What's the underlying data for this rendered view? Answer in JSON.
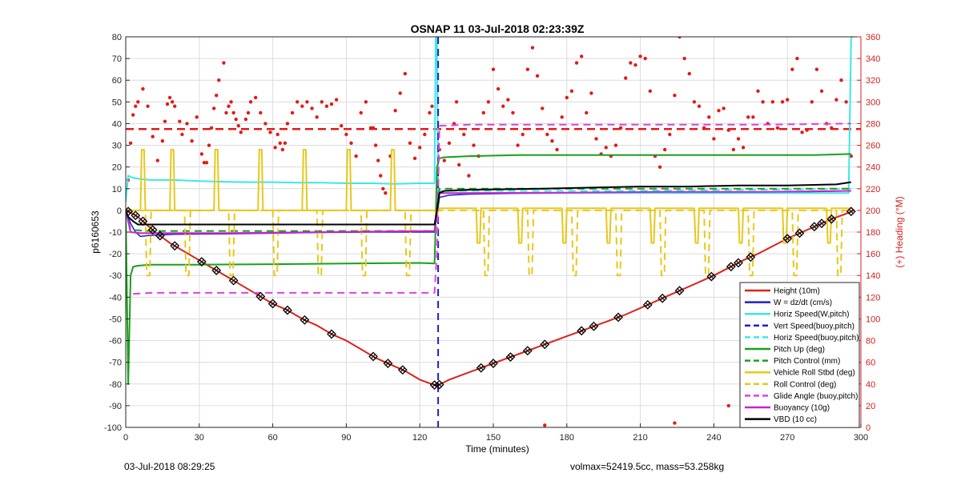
{
  "footer": {
    "left": "03-Jul-2018 08:29:25",
    "right": "volmax=52419.5cc, mass=53.258kg"
  },
  "chart_data": {
    "type": "line",
    "title": "OSNAP 11 03-Jul-2018 02:23:39Z",
    "xlabel": "Time (minutes)",
    "ylabel": "p6160653",
    "y2label": "(+) Heading (°M)",
    "xlim": [
      0,
      300
    ],
    "ylim": [
      -100,
      80
    ],
    "y2lim": [
      0,
      360
    ],
    "xticks": [
      0,
      30,
      60,
      90,
      120,
      150,
      180,
      210,
      240,
      270,
      300
    ],
    "yticks": [
      -100,
      -90,
      -80,
      -70,
      -60,
      -50,
      -40,
      -30,
      -20,
      -10,
      0,
      10,
      20,
      30,
      40,
      50,
      60,
      70,
      80
    ],
    "y2ticks": [
      0,
      20,
      40,
      60,
      80,
      100,
      120,
      140,
      160,
      180,
      200,
      220,
      240,
      260,
      280,
      300,
      320,
      340,
      360
    ],
    "grid": true,
    "legend_position": "bottom-right",
    "colors": {
      "height": "#d9231c",
      "w": "#1f1fc8",
      "horiz": "#3ee6e6",
      "pitch": "#1aa01a",
      "roll": "#e6c81e",
      "glide": "#e040e0",
      "buoyancy": "#cc22cc",
      "vbd": "#000000",
      "heading": "#e01b1b"
    },
    "series": [
      {
        "name": "Height (10m)",
        "color": "#d9231c",
        "style": "solid",
        "width": 2,
        "axis": "left",
        "x": [
          0,
          2,
          5,
          8,
          12,
          18,
          24,
          30,
          36,
          42,
          48,
          54,
          60,
          66,
          72,
          78,
          84,
          90,
          96,
          102,
          108,
          114,
          120,
          126,
          127,
          128,
          132,
          138,
          144,
          150,
          156,
          162,
          168,
          174,
          180,
          186,
          192,
          198,
          204,
          210,
          216,
          222,
          228,
          234,
          240,
          246,
          252,
          258,
          264,
          270,
          276,
          282,
          288,
          294,
          297
        ],
        "y": [
          0,
          -1,
          -3,
          -6,
          -10,
          -15,
          -19,
          -23,
          -27,
          -31,
          -35,
          -39,
          -43,
          -46,
          -50,
          -53,
          -57,
          -60,
          -64,
          -68,
          -71,
          -74,
          -78,
          -80.5,
          -80.5,
          -80.3,
          -78,
          -75.5,
          -73,
          -70.5,
          -68,
          -65.5,
          -63,
          -60.5,
          -58,
          -55.5,
          -53,
          -50.5,
          -48,
          -45,
          -42,
          -39,
          -36,
          -33,
          -30,
          -26.5,
          -23,
          -20,
          -16.5,
          -13,
          -10,
          -7,
          -4,
          -1.5,
          0
        ]
      },
      {
        "name": "W = dz/dt (cm/s)",
        "color": "#1f1fc8",
        "style": "solid",
        "width": 1.5,
        "axis": "left",
        "x": [
          0,
          2,
          4,
          6,
          10,
          20,
          40,
          60,
          80,
          100,
          126,
          127,
          128,
          132,
          140,
          160,
          180,
          200,
          220,
          240,
          260,
          280,
          296
        ],
        "y": [
          0,
          -6,
          -10,
          -12,
          -11.5,
          -11,
          -10.8,
          -10.5,
          -10.2,
          -10,
          -10,
          -3,
          6,
          7,
          7.5,
          7.8,
          8,
          8.2,
          8.3,
          8.5,
          8.5,
          8.6,
          9
        ]
      },
      {
        "name": "Horiz Speed(W,pitch)",
        "color": "#3ee6e6",
        "style": "solid",
        "width": 2,
        "axis": "left",
        "x": [
          0,
          1,
          3,
          6,
          10,
          20,
          30,
          40,
          50,
          60,
          70,
          80,
          90,
          100,
          110,
          120,
          126,
          126.5,
          127,
          127.5,
          128,
          130,
          140,
          160,
          180,
          200,
          220,
          240,
          260,
          280,
          295,
          296,
          297
        ],
        "y": [
          4,
          16,
          15,
          14.5,
          14,
          14,
          13.5,
          13.2,
          13,
          13,
          12.8,
          12.8,
          12.5,
          12.5,
          12.2,
          12.5,
          12.5,
          80,
          80,
          10,
          8,
          8,
          8,
          8,
          8,
          8,
          8,
          8,
          8,
          8,
          8,
          80,
          80
        ]
      },
      {
        "name": "Vert Speed(buoy,pitch)",
        "color": "#1f1fc8",
        "style": "dashed",
        "width": 2,
        "axis": "left",
        "x": [
          127.5,
          127.5
        ],
        "y": [
          80,
          -100
        ]
      },
      {
        "name": "Horiz Speed(buoy,pitch)",
        "color": "#3ee6e6",
        "style": "dashed",
        "width": 2,
        "axis": "left",
        "x": [
          127,
          128,
          140,
          200,
          260,
          296
        ],
        "y": [
          10,
          9,
          9,
          9,
          9.5,
          10
        ]
      },
      {
        "name": "Pitch Up (deg)",
        "color": "#1aa01a",
        "style": "solid",
        "width": 2,
        "axis": "left",
        "x": [
          0,
          1,
          2,
          3,
          5,
          10,
          30,
          60,
          90,
          120,
          126,
          126.5,
          127,
          128,
          130,
          140,
          160,
          180,
          200,
          220,
          240,
          260,
          280,
          296
        ],
        "y": [
          0,
          -80,
          -30,
          -26,
          -25.5,
          -25,
          -25,
          -24.8,
          -24.5,
          -24.2,
          -24.5,
          -5,
          20,
          24,
          24.5,
          25,
          25.5,
          25.5,
          25.5,
          25.5,
          25.5,
          25.5,
          25.5,
          26
        ]
      },
      {
        "name": "Pitch Control (mm)",
        "color": "#1aa01a",
        "style": "dashed",
        "width": 2,
        "axis": "left",
        "x": [
          0,
          2,
          10,
          60,
          126,
          127,
          128,
          200,
          296
        ],
        "y": [
          0,
          -9,
          -9.5,
          -9.5,
          -9.5,
          0,
          10,
          10,
          10
        ]
      },
      {
        "name": "Vehicle Roll Stbd (deg)",
        "color": "#e6c81e",
        "style": "solid",
        "width": 2,
        "axis": "left",
        "x": [
          0,
          6,
          6.5,
          7.5,
          8,
          18,
          18.5,
          19.5,
          20,
          36,
          36.5,
          37.5,
          38,
          54,
          54.5,
          55.5,
          56,
          72,
          72.5,
          73.5,
          74,
          90,
          90.5,
          91.5,
          92,
          108,
          108.5,
          109.5,
          110,
          126,
          127,
          128,
          132,
          143,
          143.5,
          144.5,
          145,
          160,
          160.5,
          161.5,
          162,
          178,
          178.5,
          179.5,
          180,
          196,
          196.5,
          197.5,
          198,
          214,
          214.5,
          215.5,
          216,
          232,
          232.5,
          233.5,
          234,
          250,
          250.5,
          251.5,
          252,
          268,
          268.5,
          269.5,
          270,
          286,
          286.5,
          287.5,
          288,
          296
        ],
        "y": [
          0,
          0,
          28,
          28,
          0,
          0,
          28,
          28,
          0,
          0,
          28,
          28,
          0,
          0,
          28,
          28,
          0,
          0,
          28,
          28,
          0,
          0,
          28,
          28,
          0,
          0,
          28,
          28,
          0,
          0,
          -2,
          1,
          1,
          1,
          -15,
          -15,
          1,
          1,
          -15,
          -15,
          1,
          1,
          -15,
          -15,
          1,
          1,
          -15,
          -15,
          1,
          1,
          -15,
          -15,
          1,
          1,
          -15,
          -15,
          1,
          1,
          -15,
          -15,
          1,
          1,
          -15,
          -15,
          1,
          1,
          -15,
          -15,
          1,
          1
        ]
      },
      {
        "name": "Roll Control (deg)",
        "color": "#e6c81e",
        "style": "dashed",
        "width": 2,
        "axis": "left",
        "x": [
          0,
          8,
          8.6,
          9.8,
          10.4,
          24,
          24.6,
          25.8,
          26.4,
          42,
          42.6,
          43.8,
          44.4,
          60,
          60.6,
          61.8,
          62.4,
          78,
          78.6,
          79.8,
          80.4,
          96,
          96.6,
          97.8,
          98.4,
          114,
          114.6,
          115.8,
          116.4,
          127,
          130,
          146,
          146.6,
          147.8,
          148.4,
          164,
          164.6,
          165.8,
          166.4,
          182,
          182.6,
          183.8,
          184.4,
          200,
          200.6,
          201.8,
          202.4,
          218,
          218.6,
          219.8,
          220.4,
          236,
          236.6,
          237.8,
          238.4,
          254,
          254.6,
          255.8,
          256.4,
          272,
          272.6,
          273.8,
          274.4,
          290,
          290.6,
          291.8,
          292.4,
          296
        ],
        "y": [
          0,
          0,
          -30,
          -30,
          0,
          0,
          -30,
          -30,
          0,
          0,
          -30,
          -30,
          0,
          0,
          -30,
          -30,
          0,
          0,
          -30,
          -30,
          0,
          0,
          -30,
          -30,
          0,
          0,
          -30,
          -30,
          0,
          0,
          0,
          0,
          -30,
          -30,
          0,
          0,
          -30,
          -30,
          0,
          0,
          -30,
          -30,
          0,
          0,
          -30,
          -30,
          0,
          0,
          -30,
          -30,
          0,
          0,
          -30,
          -30,
          0,
          0,
          -30,
          -30,
          0,
          0,
          -30,
          -30,
          0,
          0,
          -30,
          -30,
          0,
          0
        ]
      },
      {
        "name": "Glide Angle (buoy,pitch)",
        "color": "#e040e0",
        "style": "dashed",
        "width": 2,
        "axis": "left",
        "x": [
          3,
          10,
          60,
          100,
          126,
          127,
          128,
          140,
          180,
          220,
          260,
          296
        ],
        "y": [
          -38.5,
          -38,
          -38,
          -38,
          -38,
          -20,
          39,
          39.5,
          39.5,
          39.5,
          39.5,
          40
        ]
      },
      {
        "name": "Buoyancy (10g)",
        "color": "#cc22cc",
        "style": "solid",
        "width": 2,
        "axis": "left",
        "x": [
          0,
          2,
          6,
          40,
          80,
          126,
          127,
          128,
          140,
          180,
          220,
          260,
          296
        ],
        "y": [
          0,
          -10,
          -10.5,
          -10.5,
          -10,
          -9.5,
          0,
          8,
          8,
          8.2,
          8.5,
          8.5,
          9
        ]
      },
      {
        "name": "VBD (10 cc)",
        "color": "#000000",
        "style": "solid",
        "width": 2,
        "axis": "left",
        "x": [
          0,
          1,
          3,
          5,
          6,
          126,
          127,
          128,
          130,
          140,
          170,
          190,
          210,
          230,
          250,
          270,
          290,
          296
        ],
        "y": [
          0,
          -3,
          -5,
          -6.5,
          -6.5,
          -6.5,
          0,
          8,
          9,
          9.5,
          10,
          10.5,
          11,
          11,
          11.5,
          11.5,
          12,
          13
        ]
      }
    ],
    "height_markers": {
      "x": [
        1,
        4,
        7,
        11,
        14,
        20,
        31,
        37,
        44,
        55,
        60,
        66,
        73,
        84,
        101,
        107,
        113,
        126,
        128,
        145,
        150,
        157,
        164,
        171,
        186,
        191,
        201,
        213,
        219,
        226,
        239,
        247,
        250,
        255,
        270,
        275,
        281,
        284,
        288,
        296
      ]
    },
    "heading": {
      "name": "(+) Heading (°M)",
      "color": "#e01b1b",
      "axis": "right",
      "reference": 275,
      "x": [
        1,
        2,
        3,
        4,
        5,
        7,
        9,
        11,
        13,
        15,
        16,
        17,
        18,
        19,
        20,
        22,
        23,
        25,
        27,
        29,
        31,
        32,
        33,
        34,
        35,
        36,
        37,
        38,
        40,
        41,
        42,
        43,
        44,
        45,
        46,
        47,
        49,
        50,
        51,
        53,
        55,
        57,
        59,
        61,
        62,
        63,
        64,
        65,
        66,
        68,
        70,
        72,
        74,
        76,
        78,
        80,
        82,
        84,
        86,
        88,
        90,
        92,
        94,
        96,
        98,
        100,
        101,
        102,
        103,
        104,
        105,
        106,
        108,
        110,
        112,
        114,
        116,
        118,
        120,
        122,
        124,
        125,
        128,
        130,
        132,
        134,
        135,
        136,
        138,
        140,
        142,
        144,
        146,
        148,
        150,
        152,
        154,
        156,
        158,
        160,
        162,
        164,
        166,
        168,
        170,
        172,
        174,
        176,
        178,
        180,
        182,
        184,
        186,
        188,
        190,
        192,
        194,
        196,
        198,
        200,
        202,
        204,
        206,
        208,
        210,
        212,
        214,
        216,
        218,
        220,
        222,
        224,
        226,
        228,
        230,
        232,
        234,
        236,
        238,
        240,
        242,
        244,
        246,
        248,
        250,
        252,
        254,
        256,
        258,
        260,
        262,
        264,
        266,
        268,
        270,
        272,
        274,
        276,
        278,
        280,
        282,
        284,
        286,
        288,
        290,
        292,
        294,
        296,
        171,
        224,
        246
      ],
      "y": [
        228,
        262,
        288,
        296,
        300,
        312,
        296,
        268,
        246,
        264,
        282,
        298,
        304,
        300,
        296,
        282,
        270,
        280,
        264,
        286,
        252,
        244,
        244,
        260,
        276,
        294,
        306,
        320,
        336,
        290,
        296,
        300,
        290,
        284,
        278,
        272,
        284,
        290,
        300,
        304,
        290,
        280,
        272,
        258,
        270,
        262,
        256,
        262,
        280,
        290,
        300,
        296,
        300,
        294,
        286,
        300,
        296,
        298,
        302,
        278,
        270,
        262,
        250,
        290,
        300,
        276,
        276,
        260,
        246,
        232,
        220,
        216,
        250,
        292,
        308,
        326,
        262,
        248,
        258,
        270,
        290,
        296,
        256,
        246,
        262,
        280,
        300,
        242,
        270,
        232,
        260,
        250,
        290,
        300,
        330,
        312,
        296,
        302,
        290,
        260,
        270,
        330,
        350,
        324,
        294,
        270,
        264,
        256,
        286,
        304,
        310,
        336,
        342,
        290,
        308,
        266,
        252,
        258,
        250,
        260,
        276,
        322,
        336,
        334,
        342,
        340,
        310,
        250,
        240,
        256,
        270,
        306,
        360,
        340,
        326,
        300,
        296,
        276,
        286,
        266,
        292,
        294,
        274,
        256,
        266,
        258,
        286,
        286,
        310,
        300,
        280,
        300,
        276,
        300,
        302,
        330,
        340,
        272,
        274,
        300,
        330,
        310,
        280,
        276,
        302,
        320,
        300,
        250,
        2,
        4,
        20
      ]
    }
  }
}
